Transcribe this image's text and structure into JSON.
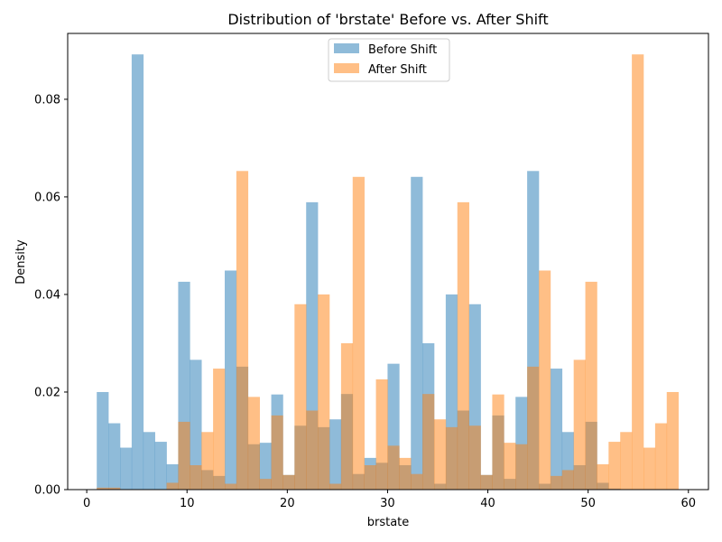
{
  "chart_data": {
    "type": "bar",
    "title": "Distribution of 'brstate' Before vs. After Shift",
    "xlabel": "brstate",
    "ylabel": "Density",
    "xlim": [
      -1.9,
      62
    ],
    "ylim": [
      0,
      0.0935
    ],
    "x_ticks": [
      0,
      10,
      20,
      30,
      40,
      50,
      60
    ],
    "y_ticks": [
      0.0,
      0.02,
      0.04,
      0.06,
      0.08
    ],
    "y_tick_labels": [
      "0.00",
      "0.02",
      "0.04",
      "0.06",
      "0.08"
    ],
    "bin_edges": [
      1,
      2.16,
      3.32,
      4.48,
      5.64,
      6.8,
      7.96,
      9.12,
      10.28,
      11.44,
      12.6,
      13.76,
      14.92,
      16.08,
      17.24,
      18.4,
      19.56,
      20.72,
      21.88,
      23.04,
      24.2,
      25.36,
      26.52,
      27.68,
      28.84,
      30.0,
      31.16,
      32.32,
      33.48,
      34.64,
      35.8,
      36.96,
      38.12,
      39.28,
      40.44,
      41.6,
      42.76,
      43.92,
      45.08,
      46.24,
      47.4,
      48.56,
      49.72,
      50.88,
      52.04,
      53.2,
      54.36,
      55.52,
      56.68,
      57.84,
      59.0
    ],
    "legend_position": "upper center",
    "series": [
      {
        "name": "Before Shift",
        "color": "#1f77b4",
        "alpha": 0.5,
        "values": [
          0.02,
          0.0136,
          0.0086,
          0.0892,
          0.0118,
          0.0098,
          0.0052,
          0.0426,
          0.0266,
          0.004,
          0.0028,
          0.0449,
          0.0252,
          0.0093,
          0.0096,
          0.0195,
          0.003,
          0.0131,
          0.0589,
          0.0128,
          0.0144,
          0.0196,
          0.0032,
          0.0065,
          0.0055,
          0.0258,
          0.005,
          0.0641,
          0.03,
          0.0012,
          0.04,
          0.0162,
          0.038,
          0.003,
          0.0152,
          0.0022,
          0.019,
          0.0653,
          0.0012,
          0.0248,
          0.0118,
          0.005,
          0.0139,
          0.0014,
          0.0002,
          0.0,
          0.0,
          0.0,
          0.0,
          0.0
        ]
      },
      {
        "name": "After Shift",
        "color": "#ff7f0e",
        "alpha": 0.5,
        "values": [
          0.0004,
          0.0004,
          0.0,
          0.0,
          0.0,
          0.0,
          0.0014,
          0.0139,
          0.005,
          0.0118,
          0.0248,
          0.0012,
          0.0653,
          0.019,
          0.0022,
          0.0152,
          0.003,
          0.038,
          0.0162,
          0.04,
          0.0012,
          0.03,
          0.0641,
          0.005,
          0.0226,
          0.009,
          0.0065,
          0.0032,
          0.0196,
          0.0144,
          0.0128,
          0.0589,
          0.0131,
          0.003,
          0.0195,
          0.0096,
          0.0093,
          0.0252,
          0.0449,
          0.0028,
          0.004,
          0.0266,
          0.0426,
          0.0052,
          0.0098,
          0.0118,
          0.0892,
          0.0086,
          0.0136,
          0.02
        ]
      }
    ]
  }
}
